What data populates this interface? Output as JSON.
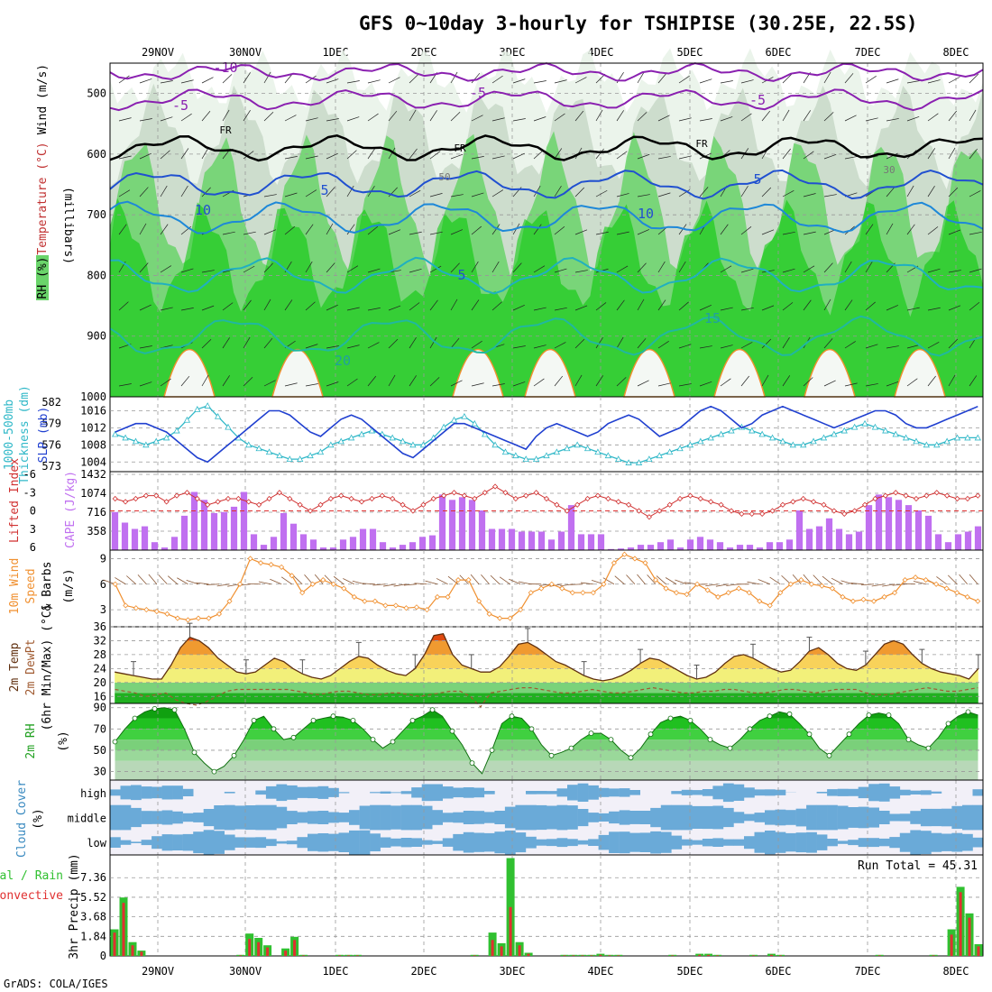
{
  "chart_data": {
    "type": "meteogram",
    "title": "GFS 0~10day 3-hourly for TSHIPISE (30.25E, 22.5S)",
    "footer": "GrADS: COLA/IGES",
    "dates": [
      "29NOV",
      "30NOV",
      "1DEC",
      "2DEC",
      "3DEC",
      "4DEC",
      "5DEC",
      "6DEC",
      "7DEC",
      "8DEC"
    ],
    "colors": {
      "rh_dark": "#00c800",
      "rh_mid": "#6ad46a",
      "rh_light": "#c8d8c8",
      "wind": "#606060",
      "warm_red": "#e06000",
      "cape": "#c070f0",
      "cyan": "#30b8c8",
      "blue": "#2040d0",
      "orange": "#f09030",
      "brown": "#885533",
      "cloud": "#6aaad8",
      "precip_green": "#30c030",
      "precip_red": "#e03030"
    },
    "panels": [
      {
        "id": "upper_air",
        "labels": [
          "RH (%)",
          "Temperature (°C)",
          "Wind (m/s)"
        ],
        "y_label": "(millibars)",
        "y_ticks": [
          "500",
          "600",
          "700",
          "800",
          "900",
          "1000"
        ],
        "ylim": [
          1000,
          450
        ],
        "isotherms": [
          {
            "label": "-10",
            "level": 465
          },
          {
            "label": "-5",
            "level": 510
          },
          {
            "label": "FR",
            "level": 590
          },
          {
            "label": "5",
            "level": 650
          },
          {
            "label": "10",
            "level": 705
          },
          {
            "label": "15",
            "level": 800
          },
          {
            "label": "20",
            "level": 900
          }
        ],
        "contour_labels": [
          "-10",
          "-5",
          "-5",
          "-5",
          "FR",
          "FR",
          "FR",
          "5",
          "5",
          "10",
          "10",
          "5",
          "15",
          "20",
          "50",
          "30"
        ]
      },
      {
        "id": "slp_thickness",
        "labels": [
          "1000-500mb",
          "Thickness (dm)",
          "SLP (mb)"
        ],
        "left_ticks": [
          "573",
          "576",
          "579",
          "582"
        ],
        "left_range": [
          573,
          582
        ],
        "right_ticks": [
          "1004",
          "1008",
          "1012",
          "1016"
        ],
        "right_range": [
          1003,
          1018
        ],
        "slp": [
          1011,
          1012,
          1013,
          1013,
          1012,
          1011,
          1009,
          1007,
          1005,
          1004,
          1006,
          1008,
          1010,
          1012,
          1014,
          1016,
          1016,
          1015,
          1013,
          1011,
          1010,
          1012,
          1014,
          1015,
          1014,
          1012,
          1010,
          1008,
          1006,
          1005,
          1007,
          1009,
          1011,
          1013,
          1013,
          1012,
          1011,
          1010,
          1009,
          1008,
          1007,
          1010,
          1012,
          1013,
          1012,
          1011,
          1010,
          1011,
          1013,
          1014,
          1015,
          1014,
          1012,
          1010,
          1011,
          1012,
          1014,
          1016,
          1017,
          1016,
          1014,
          1012,
          1013,
          1015,
          1016,
          1017,
          1016,
          1015,
          1014,
          1013,
          1012,
          1013,
          1014,
          1015,
          1016,
          1016,
          1015,
          1013,
          1012,
          1012,
          1013,
          1014,
          1015,
          1016,
          1017
        ],
        "thickness": [
          577.5,
          577.0,
          576.5,
          576.0,
          576.5,
          577.0,
          578.0,
          579.5,
          581.0,
          581.5,
          580.0,
          578.5,
          577.0,
          576.0,
          575.5,
          575.0,
          574.5,
          574.0,
          574.0,
          574.5,
          575.0,
          576.0,
          576.5,
          577.0,
          577.5,
          578.0,
          577.5,
          577.0,
          576.5,
          576.0,
          576.0,
          577.0,
          578.5,
          579.5,
          580.0,
          579.0,
          577.5,
          576.0,
          575.0,
          574.5,
          574.0,
          574.0,
          574.5,
          575.0,
          575.5,
          576.0,
          575.5,
          575.0,
          574.5,
          574.0,
          573.5,
          573.5,
          574.0,
          574.5,
          575.0,
          575.5,
          576.0,
          576.5,
          577.0,
          577.5,
          578.0,
          578.5,
          578.0,
          577.5,
          577.0,
          576.5,
          576.0,
          576.0,
          576.5,
          577.0,
          577.5,
          578.0,
          578.5,
          579.0,
          578.5,
          578.0,
          577.5,
          577.0,
          576.5,
          576.0,
          576.0,
          576.5,
          577.0,
          577.0,
          577.0
        ]
      },
      {
        "id": "lifted_cape",
        "labels": [
          "Lifted Index",
          "CAPE (J/kg)"
        ],
        "left_ticks": [
          "-6",
          "-3",
          "0",
          "3",
          "6"
        ],
        "left_range": [
          -6,
          6
        ],
        "right_ticks": [
          "358",
          "716",
          "1074",
          "1432"
        ],
        "right_range": [
          0,
          1432
        ],
        "lifted": [
          -2,
          -1.5,
          -2,
          -2.5,
          -2.5,
          -1.5,
          -2.5,
          -3,
          -2,
          -1,
          -1.5,
          -2,
          -2,
          -1.5,
          -1,
          -2,
          -3,
          -2,
          -1,
          0,
          -1,
          -2,
          -2.5,
          -2,
          -1.5,
          -2,
          -2.5,
          -2,
          -1,
          0,
          -1,
          -2,
          -2.5,
          -3,
          -2.5,
          -2,
          -3,
          -4,
          -3,
          -2,
          -2.5,
          -3,
          -2,
          -1,
          0,
          -1,
          -2,
          -2.5,
          -2,
          -1.5,
          -1,
          0,
          1,
          0,
          -1,
          -2,
          -2.5,
          -2,
          -1.5,
          -1,
          0,
          0.5,
          0.5,
          0.5,
          0,
          -1,
          -1.5,
          -2,
          -1.5,
          -1,
          0,
          0.5,
          0,
          -1,
          -2,
          -2.5,
          -3,
          -2.5,
          -2,
          -2.5,
          -3,
          -2.5,
          -2,
          -2,
          -2.5
        ],
        "cape": [
          720,
          520,
          400,
          450,
          150,
          50,
          250,
          650,
          1100,
          950,
          700,
          720,
          820,
          1100,
          300,
          100,
          250,
          700,
          500,
          300,
          200,
          50,
          50,
          200,
          250,
          400,
          400,
          150,
          50,
          100,
          150,
          250,
          280,
          1050,
          950,
          1000,
          950,
          750,
          400,
          400,
          400,
          350,
          350,
          350,
          200,
          350,
          850,
          300,
          300,
          300,
          20,
          30,
          50,
          100,
          100,
          150,
          200,
          50,
          200,
          250,
          200,
          150,
          50,
          100,
          100,
          50,
          150,
          150,
          200,
          750,
          400,
          450,
          600,
          400,
          300,
          350,
          850,
          1050,
          1000,
          950,
          850,
          750,
          650,
          300,
          150,
          300,
          350,
          450
        ],
        "sample_count_note": ""
      },
      {
        "id": "wind10m",
        "labels": [
          "10m Wind",
          "Speed",
          "& Barbs",
          "(m/s)"
        ],
        "left_ticks": [
          "3",
          "6",
          "9"
        ],
        "left_range": [
          1,
          10
        ],
        "speed": [
          6,
          3.5,
          3.2,
          3,
          2.8,
          2.5,
          2,
          1.8,
          2,
          2,
          2.5,
          4,
          6,
          9,
          8.5,
          8.3,
          8,
          7,
          5,
          6,
          6.5,
          6,
          5.5,
          4.5,
          4,
          4,
          3.5,
          3.5,
          3.2,
          3.3,
          3,
          4.5,
          4.5,
          6.5,
          6.5,
          4,
          2.5,
          2,
          2,
          3,
          5,
          5.5,
          6,
          5.5,
          5,
          5,
          5,
          6,
          8.5,
          9.5,
          9,
          8.5,
          6.5,
          5.5,
          5,
          4.8,
          6,
          5.3,
          4.5,
          5,
          5.5,
          5,
          4,
          3.5,
          5,
          6,
          6.5,
          6,
          5.8,
          5.5,
          4.5,
          4,
          4.2,
          4,
          4.5,
          5,
          6.5,
          6.8,
          6.5,
          6,
          5.5,
          5,
          4.5,
          4
        ],
        "barbs_count": 84
      },
      {
        "id": "temp2m",
        "labels": [
          "2m Temp",
          "2m DewPt",
          "(6hr Min/Max) (°C)"
        ],
        "left_ticks": [
          "16",
          "20",
          "24",
          "28",
          "32",
          "36"
        ],
        "left_range": [
          14,
          36
        ],
        "temp": [
          23,
          22.5,
          22,
          21.5,
          21,
          21,
          25,
          30,
          33,
          32,
          30,
          27,
          25,
          23,
          22.5,
          23,
          25,
          27,
          26,
          24,
          22.5,
          21.5,
          21,
          22,
          24,
          26,
          27.5,
          27,
          25,
          23.5,
          22.5,
          22,
          24,
          28,
          33.5,
          34,
          28,
          25,
          24,
          23,
          23,
          24.5,
          27.5,
          31,
          31.5,
          30,
          28,
          26,
          25,
          23.5,
          22,
          21,
          20.5,
          21,
          22,
          23.5,
          25.5,
          27,
          26.5,
          25,
          23.5,
          22,
          21,
          21.5,
          23,
          25.5,
          27.5,
          28,
          27,
          25.5,
          24,
          23,
          23.5,
          26,
          29,
          30,
          28,
          25.5,
          24,
          23.5,
          25,
          28,
          31,
          32,
          31,
          28,
          25.5,
          24,
          23,
          22.5,
          22,
          21,
          24
        ],
        "dewpoint": [
          18,
          17.5,
          17,
          16,
          16.5,
          17,
          15,
          14,
          13.5,
          14.5,
          16,
          17.5,
          18,
          18,
          18,
          18,
          18,
          18,
          17.5,
          17,
          16.5,
          17,
          17.5,
          17.5,
          17,
          16.5,
          16.5,
          17,
          17,
          16.5,
          16,
          16.5,
          17,
          17.5,
          17.5,
          16,
          13,
          17,
          17.5,
          18,
          18.5,
          18.5,
          18,
          17.5,
          17,
          17,
          17.5,
          18,
          17.5,
          17,
          17,
          17.5,
          18,
          18.5,
          18,
          17.5,
          17,
          17,
          17.5,
          17.5,
          18,
          18,
          17.5,
          17,
          17,
          17.5,
          18,
          18,
          17.5,
          17,
          17.5,
          18,
          18,
          18,
          17,
          16.5,
          16.5,
          17,
          17.5,
          18,
          18.5,
          18,
          17.5,
          17.5,
          18,
          18.5
        ]
      },
      {
        "id": "rh2m",
        "labels": [
          "2m RH",
          "(%)"
        ],
        "left_ticks": [
          "30",
          "50",
          "70",
          "90"
        ],
        "left_range": [
          22,
          94
        ],
        "rh": [
          58,
          70,
          80,
          86,
          89,
          90,
          88,
          70,
          48,
          38,
          30,
          35,
          45,
          60,
          78,
          82,
          70,
          60,
          62,
          70,
          78,
          80,
          82,
          81,
          78,
          70,
          60,
          52,
          58,
          68,
          78,
          82,
          88,
          82,
          68,
          55,
          38,
          28,
          50,
          75,
          82,
          80,
          70,
          55,
          45,
          48,
          52,
          60,
          66,
          66,
          60,
          50,
          43,
          52,
          65,
          76,
          80,
          82,
          78,
          70,
          60,
          55,
          52,
          60,
          70,
          78,
          82,
          86,
          84,
          75,
          65,
          52,
          45,
          55,
          65,
          75,
          83,
          85,
          83,
          75,
          60,
          55,
          52,
          62,
          75,
          82,
          86,
          83
        ]
      },
      {
        "id": "cloud",
        "labels": [
          "Cloud Cover",
          "(%)"
        ],
        "rows": [
          "high",
          "middle",
          "low"
        ]
      },
      {
        "id": "precip",
        "labels": [
          "Total / Rain",
          "Convective",
          "3hr Precip (mm)"
        ],
        "left_ticks": [
          "0",
          "1.84",
          "3.68",
          "5.52",
          "7.36"
        ],
        "left_range": [
          0,
          9.5
        ],
        "run_total": "Run Total = 45.31",
        "total": [
          2.5,
          5.5,
          1.3,
          0.5,
          0,
          0,
          0,
          0,
          0,
          0,
          0,
          0,
          0,
          0,
          0.1,
          2.1,
          1.7,
          1.0,
          0,
          0.7,
          1.8,
          0.1,
          0,
          0,
          0,
          0.1,
          0.1,
          0.1,
          0,
          0,
          0,
          0,
          0,
          0,
          0,
          0,
          0,
          0,
          0,
          0,
          0.1,
          0,
          2.2,
          1.2,
          9.2,
          1.3,
          0.3,
          0,
          0,
          0,
          0.1,
          0.1,
          0.1,
          0.1,
          0.2,
          0.1,
          0.1,
          0,
          0,
          0,
          0,
          0,
          0.1,
          0,
          0,
          0.2,
          0.2,
          0.1,
          0,
          0,
          0,
          0.1,
          0,
          0.2,
          0.1,
          0,
          0,
          0,
          0,
          0,
          0,
          0,
          0,
          0,
          0,
          0.1,
          0,
          0,
          0,
          0,
          0,
          0.1,
          0,
          2.5,
          6.5,
          4.0,
          1.1
        ],
        "convective": [
          2.2,
          5.0,
          1.0,
          0.4,
          0,
          0,
          0,
          0,
          0,
          0,
          0,
          0,
          0,
          0,
          0.05,
          1.6,
          1.3,
          0.8,
          0,
          0.5,
          1.5,
          0.05,
          0,
          0,
          0,
          0.05,
          0.05,
          0.05,
          0,
          0,
          0,
          0,
          0,
          0,
          0,
          0,
          0,
          0,
          0,
          0,
          0.05,
          0,
          1.5,
          0.9,
          4.6,
          1.0,
          0.2,
          0,
          0,
          0,
          0.05,
          0.05,
          0.05,
          0.05,
          0.1,
          0.05,
          0.05,
          0,
          0,
          0,
          0,
          0,
          0.05,
          0,
          0,
          0.1,
          0.1,
          0.05,
          0,
          0,
          0,
          0.05,
          0,
          0.1,
          0.05,
          0,
          0,
          0,
          0,
          0,
          0,
          0,
          0,
          0,
          0,
          0.05,
          0,
          0,
          0,
          0,
          0,
          0.05,
          0,
          2.0,
          6.0,
          3.6,
          0.9
        ]
      }
    ]
  }
}
